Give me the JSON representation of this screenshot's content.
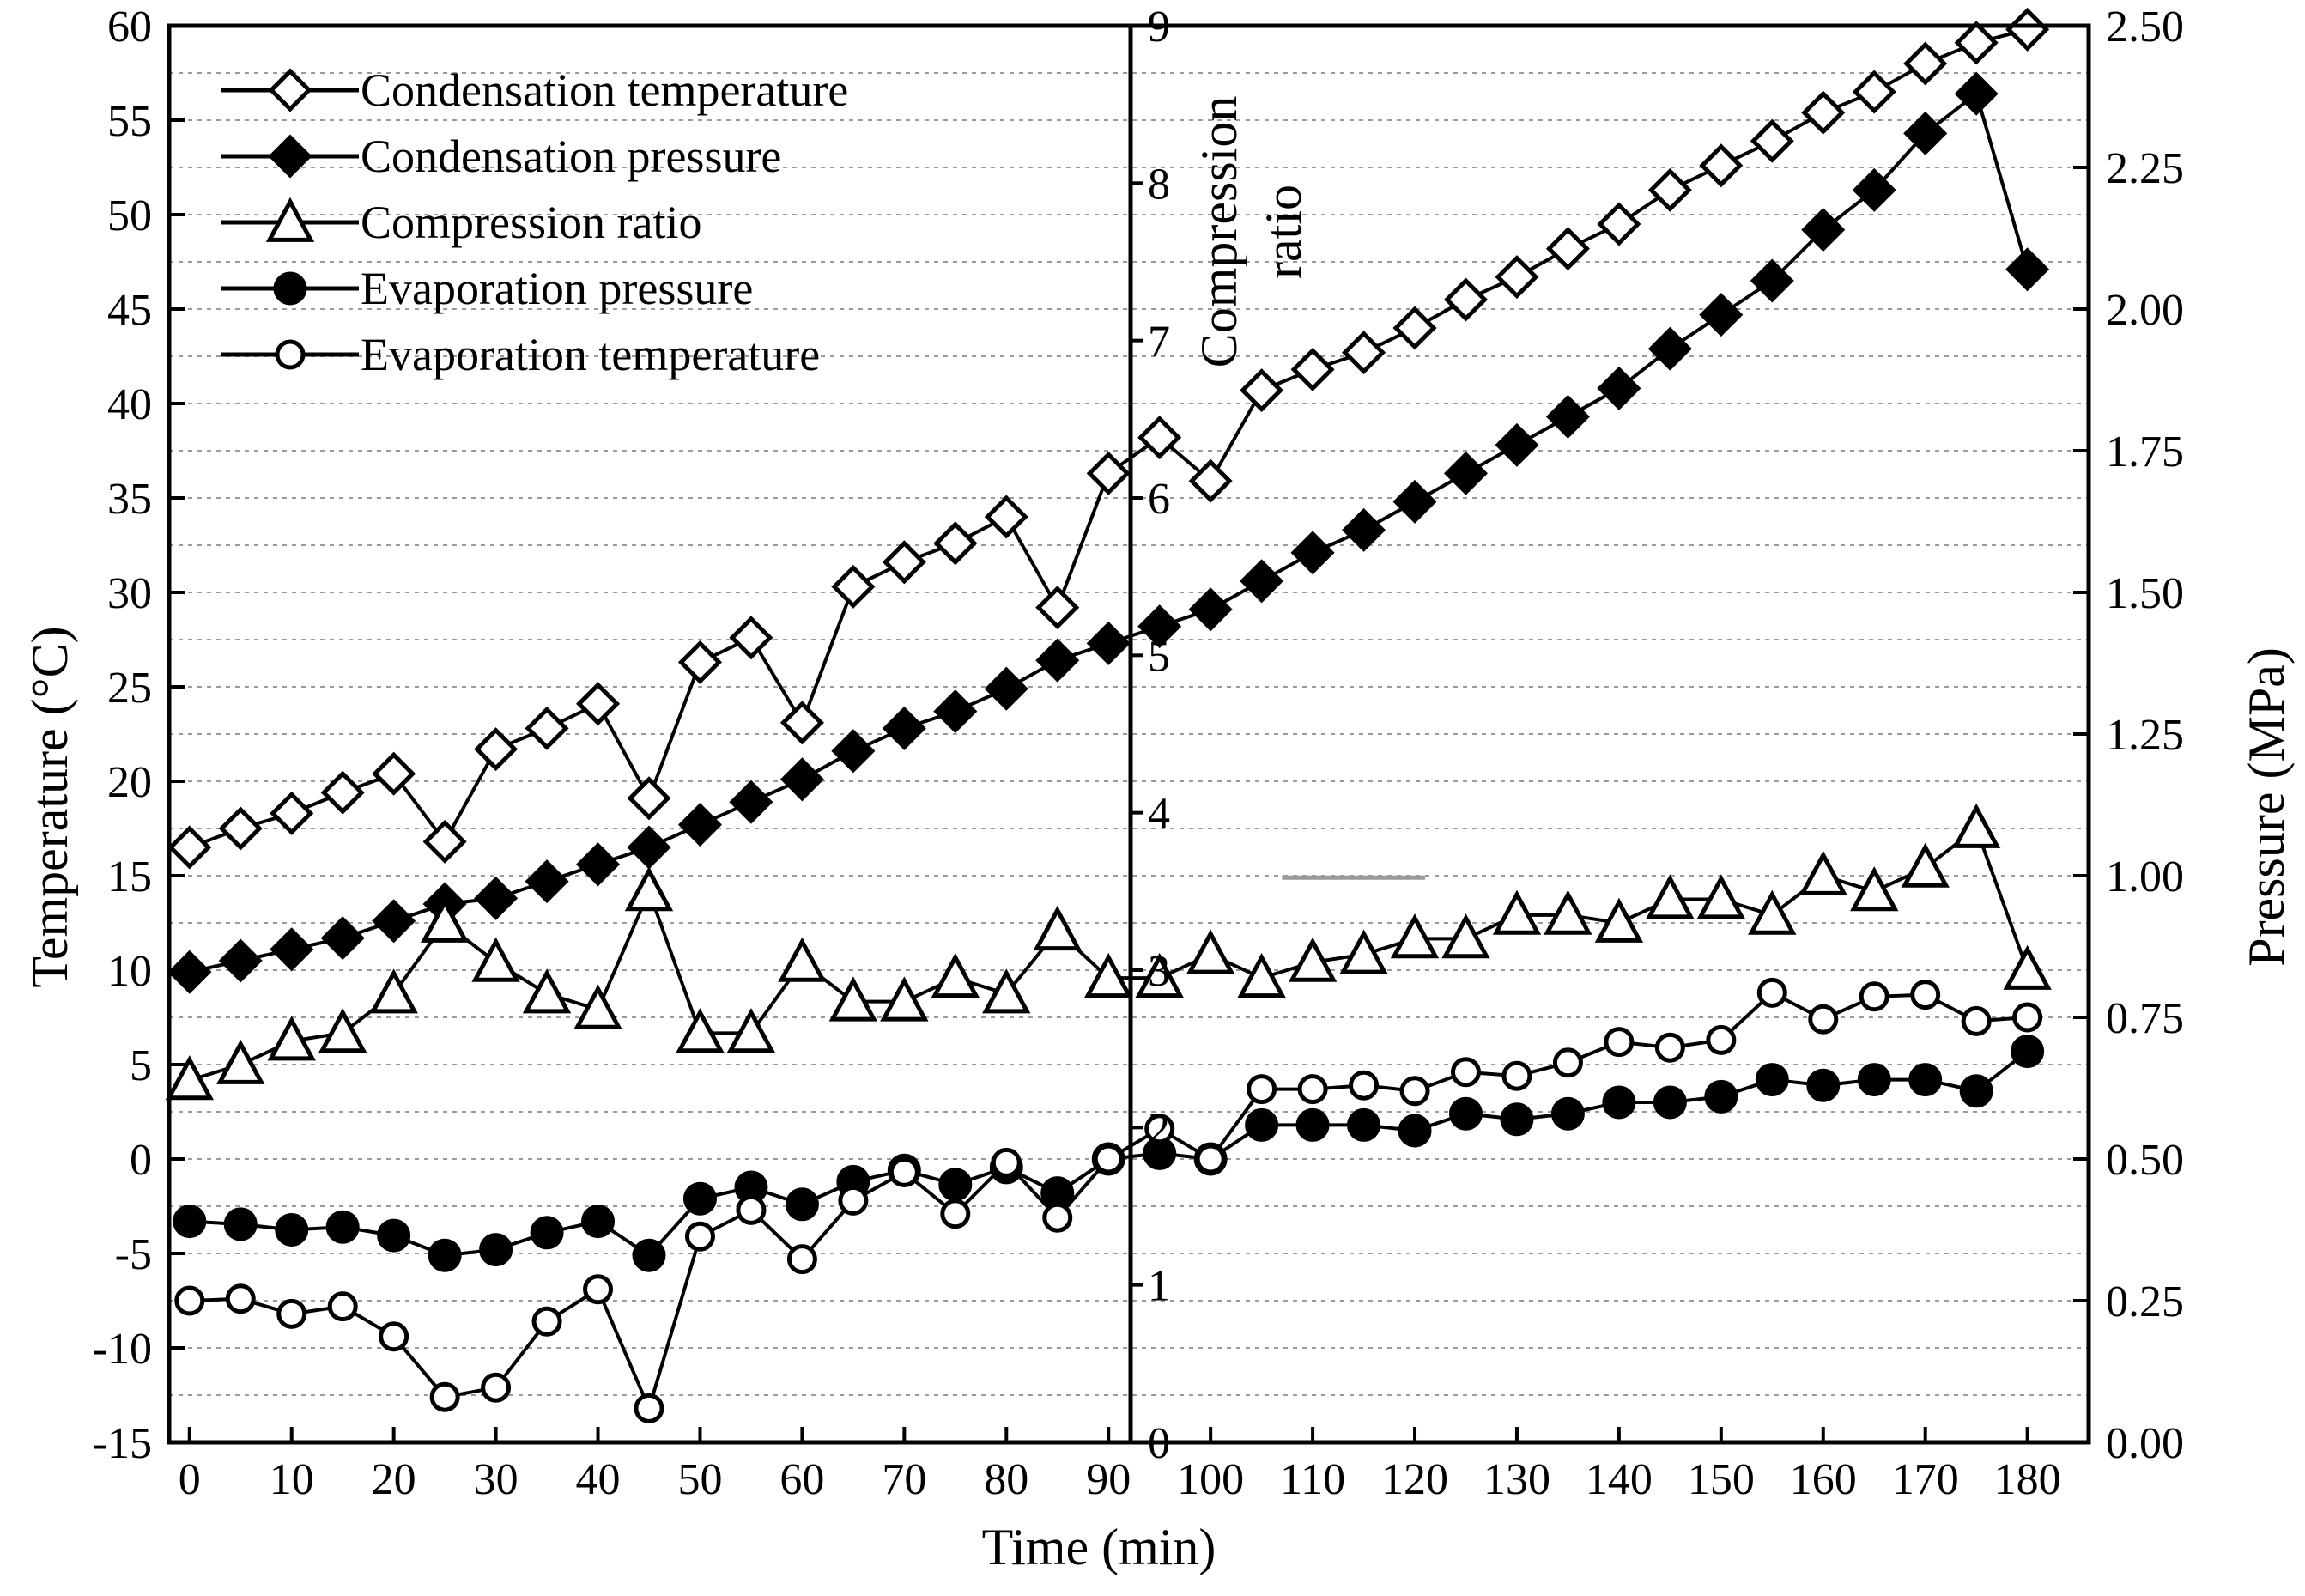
{
  "chart_data": {
    "type": "line",
    "xlabel": "Time (min)",
    "ylabel_left": "Temperature (°C)",
    "ylabel_mid": "Compression ratio",
    "ylabel_mid_lines": [
      "Compression",
      "ratio"
    ],
    "ylabel_right": "Pressure (MPa)",
    "xlim": [
      -2,
      186
    ],
    "x_ticks": [
      0,
      10,
      20,
      30,
      40,
      50,
      60,
      70,
      80,
      90,
      100,
      110,
      120,
      130,
      140,
      150,
      160,
      170,
      180
    ],
    "ylim_left": [
      -15,
      60
    ],
    "y_ticks_left": [
      60,
      55,
      50,
      45,
      40,
      35,
      30,
      25,
      20,
      15,
      10,
      5,
      0,
      -5,
      -10,
      -15
    ],
    "ylim_mid": [
      0,
      9
    ],
    "y_ticks_mid": [
      9,
      8,
      7,
      6,
      5,
      4,
      3,
      2,
      1,
      0
    ],
    "ylim_right": [
      0,
      2.5
    ],
    "y_ticks_right": [
      "2.50",
      "2.25",
      "2.00",
      "1.75",
      "1.50",
      "1.25",
      "1.00",
      "0.75",
      "0.50",
      "0.25",
      "0.00"
    ],
    "grid": "horizontal dotted lines",
    "legend_position": "top-left",
    "x": [
      0,
      5,
      10,
      15,
      20,
      25,
      30,
      35,
      40,
      45,
      50,
      55,
      60,
      65,
      70,
      75,
      80,
      85,
      90,
      95,
      100,
      105,
      110,
      115,
      120,
      125,
      130,
      135,
      140,
      145,
      150,
      155,
      160,
      165,
      170,
      175,
      180
    ],
    "series": [
      {
        "name": "Condensation temperature",
        "axis": "left",
        "marker": "diamond-open",
        "values": [
          16.5,
          17.5,
          18.3,
          19.4,
          20.4,
          16.8,
          21.7,
          22.8,
          24.1,
          19.1,
          26.3,
          27.6,
          23.1,
          30.3,
          31.6,
          32.6,
          34.0,
          29.2,
          36.3,
          38.2,
          35.9,
          40.7,
          41.8,
          42.7,
          44.0,
          45.5,
          46.7,
          48.2,
          49.5,
          51.3,
          52.6,
          53.9,
          55.4,
          56.5,
          58.0,
          59.1,
          59.8
        ]
      },
      {
        "name": "Condensation pressure",
        "axis": "right",
        "marker": "diamond-filled",
        "values": [
          0.83,
          0.85,
          0.87,
          0.89,
          0.92,
          0.95,
          0.96,
          0.99,
          1.02,
          1.05,
          1.09,
          1.13,
          1.17,
          1.22,
          1.26,
          1.29,
          1.33,
          1.38,
          1.41,
          1.44,
          1.47,
          1.52,
          1.57,
          1.61,
          1.66,
          1.71,
          1.76,
          1.81,
          1.86,
          1.93,
          1.99,
          2.05,
          2.14,
          2.21,
          2.31,
          2.38,
          2.07
        ]
      },
      {
        "name": "Compression ratio",
        "axis": "middle",
        "marker": "triangle-open",
        "values": [
          2.3,
          2.4,
          2.55,
          2.6,
          2.85,
          3.3,
          3.05,
          2.85,
          2.75,
          3.5,
          2.6,
          2.6,
          3.05,
          2.8,
          2.8,
          2.95,
          2.85,
          3.25,
          2.95,
          2.95,
          3.1,
          2.95,
          3.05,
          3.1,
          3.2,
          3.2,
          3.35,
          3.35,
          3.3,
          3.45,
          3.45,
          3.35,
          3.6,
          3.5,
          3.65,
          3.9,
          3.0
        ]
      },
      {
        "name": "Evaporation pressure",
        "axis": "right",
        "marker": "circle-filled",
        "values": [
          0.39,
          0.385,
          0.375,
          0.38,
          0.365,
          0.33,
          0.34,
          0.37,
          0.39,
          0.33,
          0.43,
          0.45,
          0.42,
          0.46,
          0.48,
          0.455,
          0.485,
          0.44,
          0.5,
          0.51,
          0.5,
          0.56,
          0.56,
          0.56,
          0.55,
          0.58,
          0.57,
          0.58,
          0.6,
          0.6,
          0.61,
          0.64,
          0.63,
          0.64,
          0.64,
          0.62,
          0.69
        ]
      },
      {
        "name": "Evaporation temperature",
        "axis": "left",
        "marker": "circle-open",
        "values": [
          -7.5,
          -7.4,
          -8.2,
          -7.8,
          -9.4,
          -12.6,
          -12.1,
          -8.6,
          -6.9,
          -13.2,
          -4.1,
          -2.7,
          -5.3,
          -2.2,
          -0.7,
          -2.9,
          -0.2,
          -3.1,
          0,
          1.6,
          0,
          3.7,
          3.7,
          3.9,
          3.6,
          4.6,
          4.4,
          5.1,
          6.2,
          5.9,
          6.3,
          8.8,
          7.4,
          8.6,
          8.7,
          7.3,
          7.5
        ]
      }
    ],
    "annotations": [
      {
        "type": "grey-segment",
        "x_from": 107,
        "x_to": 121,
        "left_value": 14.9
      }
    ]
  }
}
